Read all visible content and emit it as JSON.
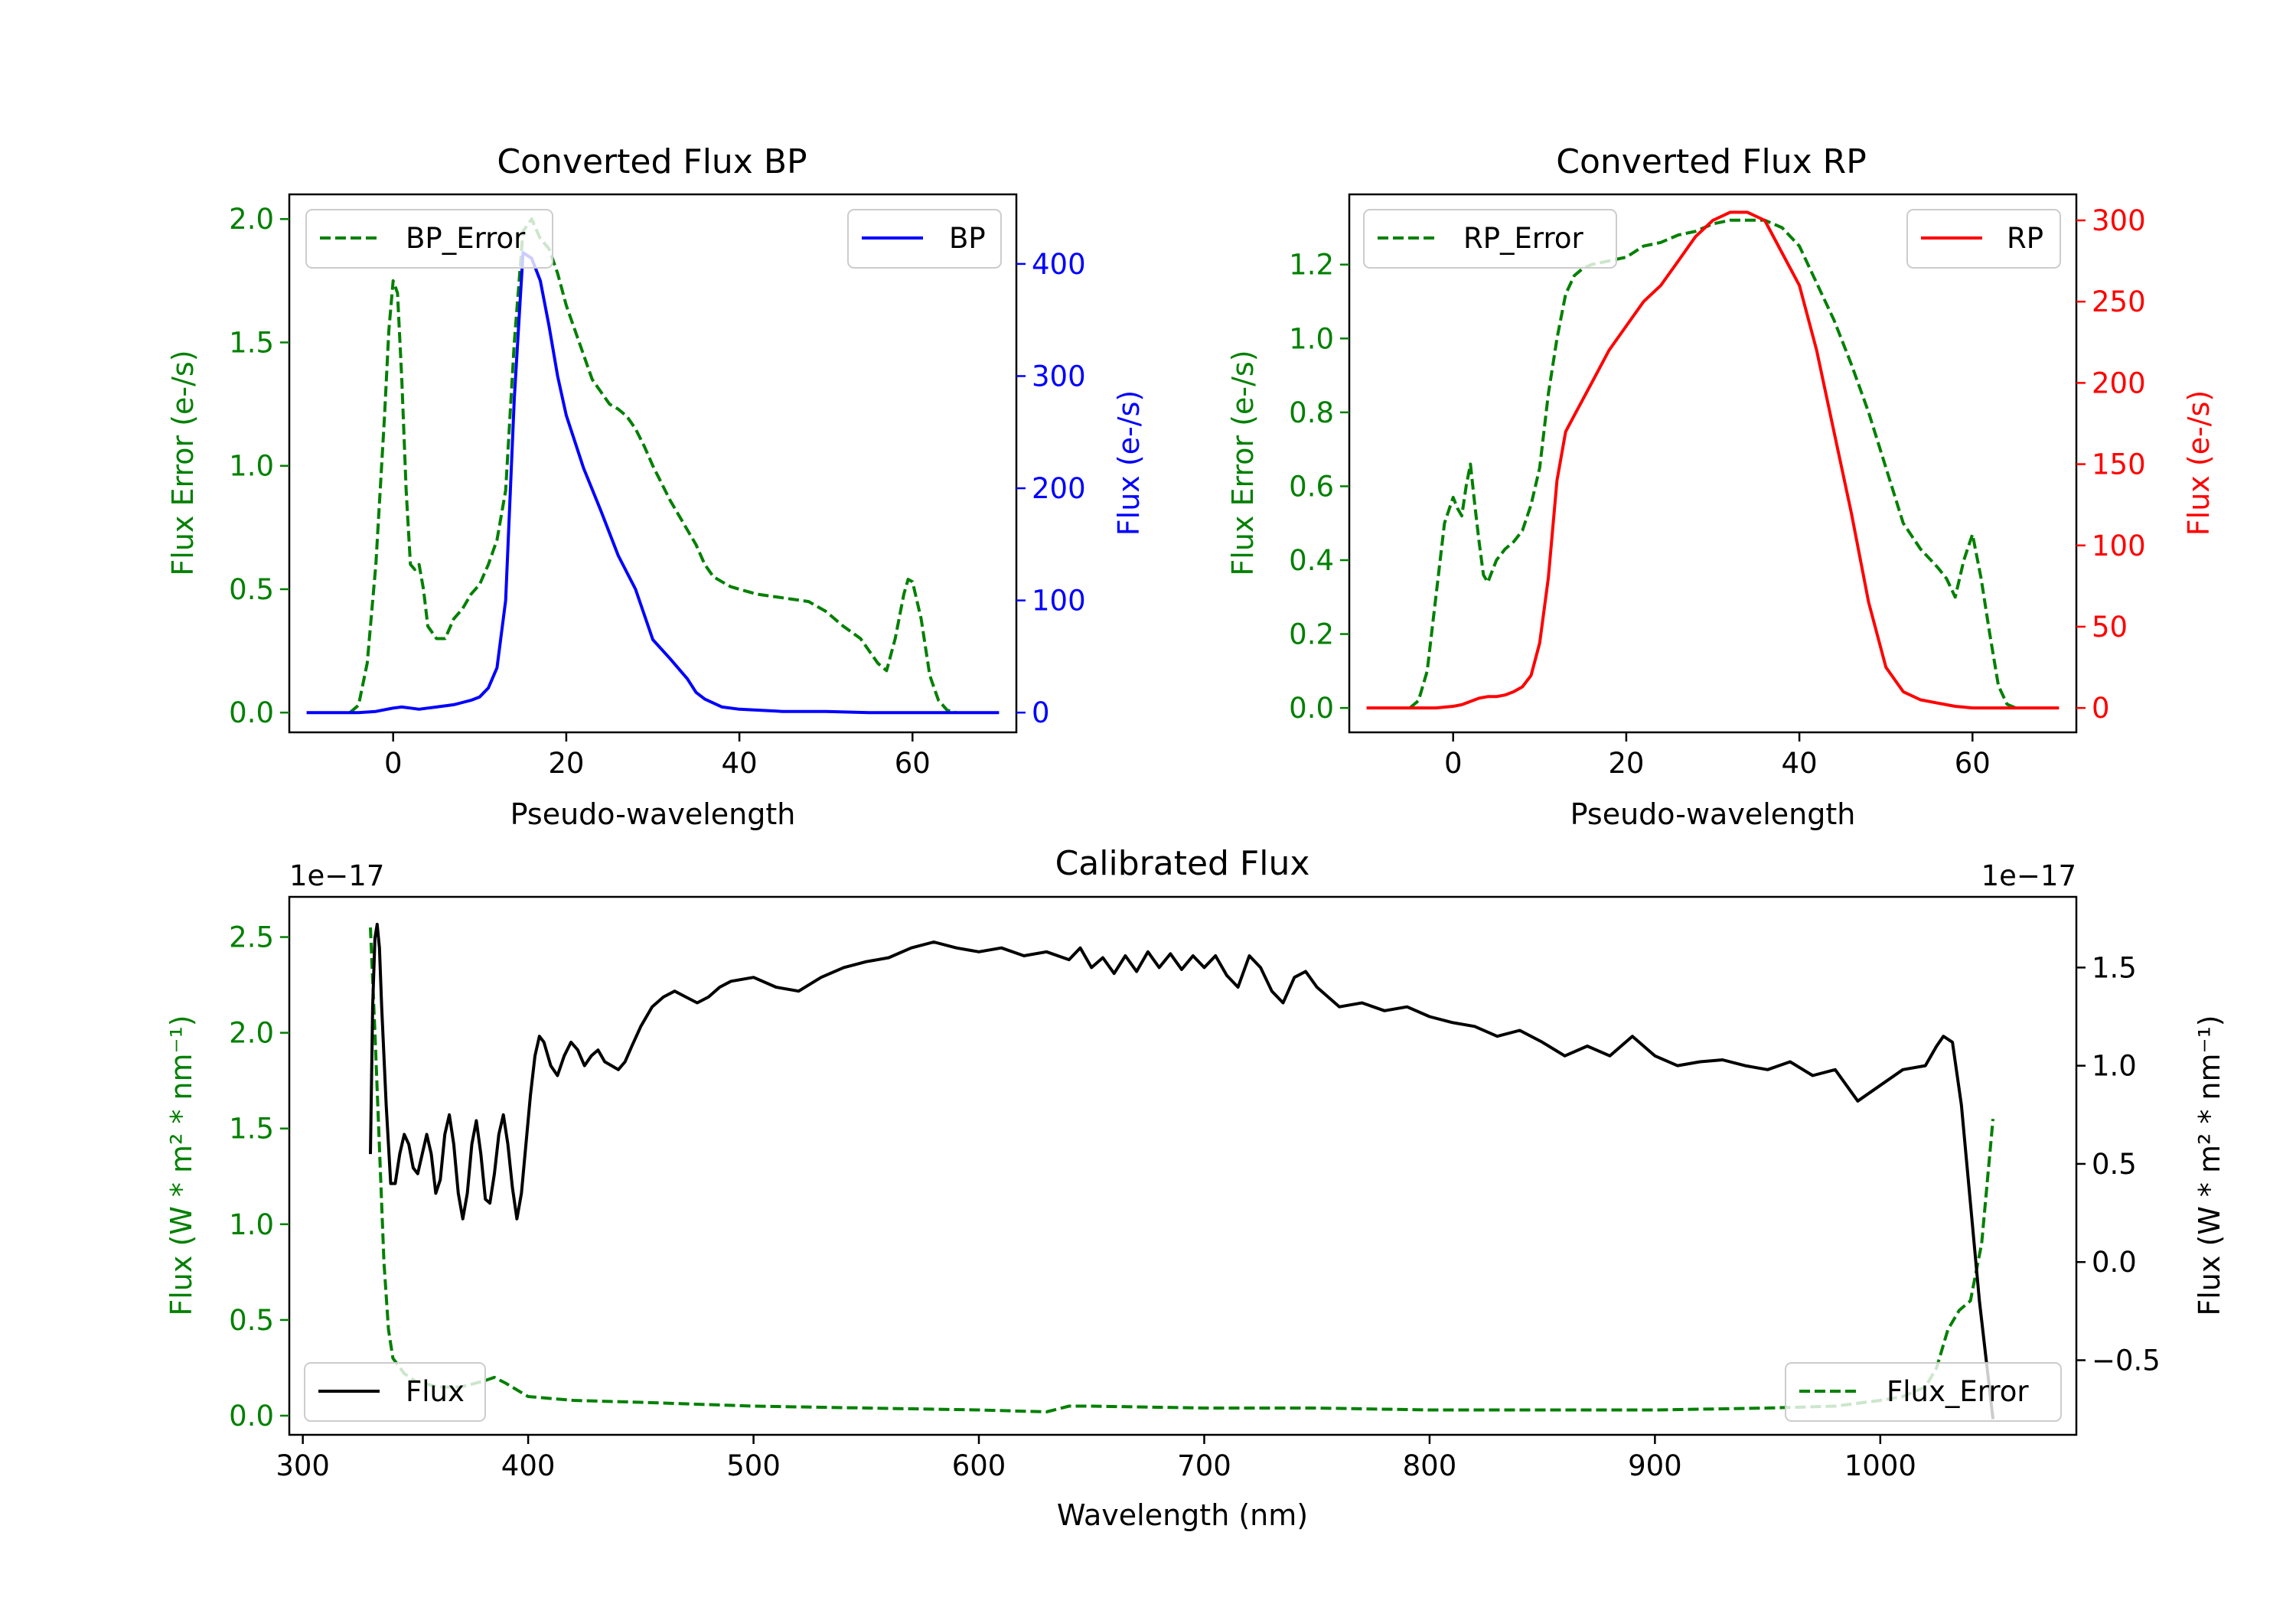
{
  "chart_data": [
    {
      "id": "bp",
      "type": "line",
      "title": "Converted Flux BP",
      "xlabel": "Pseudo-wavelength",
      "ylabel_left": "Flux Error (e-/s)",
      "ylabel_right": "Flux (e-/s)",
      "xlim": [
        -12,
        72
      ],
      "ylim_left": [
        -0.08,
        2.1
      ],
      "ylim_right": [
        -17.6,
        462
      ],
      "xticks": [
        0,
        20,
        40,
        60
      ],
      "yticks_left": [
        0.0,
        0.5,
        1.0,
        1.5,
        2.0
      ],
      "yticks_right": [
        0,
        100,
        200,
        300,
        400
      ],
      "ytick_labels_left": [
        "0.0",
        "0.5",
        "1.0",
        "1.5",
        "2.0"
      ],
      "ytick_labels_right": [
        "0",
        "100",
        "200",
        "300",
        "400"
      ],
      "legend_left": "top-left",
      "legend_right": "top-right",
      "series": [
        {
          "name": "BP_Error",
          "axis": "left",
          "color": "#008000",
          "dashed": true,
          "x": [
            -5,
            -4,
            -3,
            -2,
            -1,
            -0.5,
            0,
            0.5,
            1,
            1.5,
            2,
            2.5,
            3,
            3.5,
            4,
            5,
            6,
            7,
            8,
            9,
            10,
            11,
            12,
            13,
            14,
            15,
            16,
            17,
            18,
            19,
            20,
            21,
            22,
            23,
            24,
            25,
            26,
            27,
            28,
            29,
            30,
            31,
            32,
            33,
            34,
            35,
            36,
            37,
            38,
            39,
            40,
            42,
            44,
            46,
            48,
            50,
            52,
            54,
            56,
            57,
            58,
            59,
            59.5,
            60,
            61,
            62,
            63,
            64,
            65
          ],
          "values": [
            0.0,
            0.03,
            0.2,
            0.6,
            1.2,
            1.55,
            1.75,
            1.7,
            1.35,
            0.9,
            0.6,
            0.58,
            0.6,
            0.5,
            0.35,
            0.3,
            0.3,
            0.38,
            0.42,
            0.48,
            0.52,
            0.6,
            0.7,
            0.9,
            1.5,
            1.95,
            2.0,
            1.92,
            1.88,
            1.78,
            1.65,
            1.55,
            1.45,
            1.35,
            1.3,
            1.25,
            1.23,
            1.2,
            1.15,
            1.08,
            1.0,
            0.93,
            0.86,
            0.8,
            0.74,
            0.68,
            0.6,
            0.55,
            0.53,
            0.51,
            0.5,
            0.48,
            0.47,
            0.46,
            0.45,
            0.41,
            0.35,
            0.3,
            0.2,
            0.17,
            0.3,
            0.48,
            0.54,
            0.53,
            0.38,
            0.15,
            0.05,
            0.01,
            0.0
          ]
        },
        {
          "name": "BP",
          "axis": "right",
          "color": "#0000ff",
          "dashed": false,
          "x": [
            -10,
            -6,
            -4,
            -2,
            0,
            1,
            2,
            3,
            4,
            5,
            6,
            7,
            8,
            9,
            10,
            11,
            12,
            13,
            14,
            15,
            16,
            17,
            18,
            19,
            20,
            22,
            24,
            26,
            28,
            30,
            32,
            34,
            35,
            36,
            38,
            40,
            45,
            50,
            55,
            60,
            65,
            70
          ],
          "values": [
            0,
            0,
            0,
            1,
            4,
            5,
            4,
            3,
            4,
            5,
            6,
            7,
            9,
            11,
            14,
            22,
            40,
            100,
            280,
            410,
            405,
            385,
            345,
            300,
            265,
            218,
            180,
            140,
            110,
            65,
            48,
            30,
            18,
            12,
            5,
            3,
            1,
            1,
            0,
            0,
            0,
            0
          ]
        }
      ]
    },
    {
      "id": "rp",
      "type": "line",
      "title": "Converted Flux RP",
      "xlabel": "Pseudo-wavelength",
      "ylabel_left": "Flux Error (e-/s)",
      "ylabel_right": "Flux (e-/s)",
      "xlim": [
        -12,
        72
      ],
      "ylim_left": [
        -0.066,
        1.39
      ],
      "ylim_right": [
        -15.0,
        316
      ],
      "xticks": [
        0,
        20,
        40,
        60
      ],
      "yticks_left": [
        0.0,
        0.2,
        0.4,
        0.6,
        0.8,
        1.0,
        1.2
      ],
      "yticks_right": [
        0,
        50,
        100,
        150,
        200,
        250,
        300
      ],
      "ytick_labels_left": [
        "0.0",
        "0.2",
        "0.4",
        "0.6",
        "0.8",
        "1.0",
        "1.2"
      ],
      "ytick_labels_right": [
        "0",
        "50",
        "100",
        "150",
        "200",
        "250",
        "300"
      ],
      "legend_left": "top-left",
      "legend_right": "top-right",
      "series": [
        {
          "name": "RP_Error",
          "axis": "left",
          "color": "#008000",
          "dashed": true,
          "x": [
            -5,
            -4,
            -3,
            -2,
            -1,
            0,
            0.5,
            1,
            1.5,
            2,
            2.5,
            3,
            3.5,
            4,
            5,
            6,
            7,
            8,
            9,
            10,
            11,
            12,
            13,
            14,
            15,
            16,
            18,
            20,
            22,
            24,
            26,
            28,
            30,
            32,
            34,
            36,
            38,
            40,
            42,
            44,
            46,
            48,
            50,
            52,
            54,
            56,
            57,
            58,
            59,
            60,
            61,
            62,
            63,
            64,
            65
          ],
          "values": [
            0.0,
            0.02,
            0.1,
            0.3,
            0.5,
            0.57,
            0.54,
            0.52,
            0.6,
            0.66,
            0.55,
            0.45,
            0.36,
            0.34,
            0.4,
            0.43,
            0.45,
            0.48,
            0.55,
            0.65,
            0.85,
            1.0,
            1.12,
            1.17,
            1.19,
            1.2,
            1.21,
            1.22,
            1.25,
            1.26,
            1.28,
            1.29,
            1.31,
            1.32,
            1.32,
            1.32,
            1.3,
            1.25,
            1.15,
            1.05,
            0.93,
            0.8,
            0.65,
            0.5,
            0.43,
            0.38,
            0.35,
            0.3,
            0.4,
            0.47,
            0.35,
            0.2,
            0.06,
            0.01,
            0.0
          ]
        },
        {
          "name": "RP",
          "axis": "right",
          "color": "#ff0000",
          "dashed": false,
          "x": [
            -10,
            -4,
            -2,
            0,
            1,
            2,
            3,
            4,
            5,
            6,
            7,
            8,
            9,
            10,
            11,
            12,
            13,
            14,
            15,
            16,
            18,
            20,
            22,
            24,
            26,
            28,
            30,
            32,
            34,
            36,
            38,
            40,
            42,
            44,
            46,
            48,
            50,
            52,
            54,
            56,
            58,
            60,
            65,
            70
          ],
          "values": [
            0,
            0,
            0,
            1,
            2,
            4,
            6,
            7,
            7,
            8,
            10,
            13,
            20,
            40,
            80,
            140,
            170,
            180,
            190,
            200,
            220,
            235,
            250,
            260,
            275,
            290,
            300,
            305,
            305,
            300,
            280,
            260,
            220,
            170,
            120,
            65,
            25,
            10,
            5,
            3,
            1,
            0,
            0,
            0
          ]
        }
      ]
    },
    {
      "id": "cal",
      "type": "line",
      "title": "Calibrated Flux",
      "xlabel": "Wavelength (nm)",
      "ylabel_left": "Flux (W * m² * nm⁻¹)",
      "ylabel_right": "Flux (W * m² * nm⁻¹)",
      "offset_left": "1e−17",
      "offset_right": "1e−17",
      "xlim": [
        294,
        1087
      ],
      "ylim_left": [
        -0.1,
        2.71
      ],
      "ylim_right": [
        -0.88,
        1.86
      ],
      "xticks": [
        300,
        400,
        500,
        600,
        700,
        800,
        900,
        1000
      ],
      "yticks_left": [
        0.0,
        0.5,
        1.0,
        1.5,
        2.0,
        2.5
      ],
      "yticks_right": [
        -0.5,
        0.0,
        0.5,
        1.0,
        1.5
      ],
      "ytick_labels_left": [
        "0.0",
        "0.5",
        "1.0",
        "1.5",
        "2.0",
        "2.5"
      ],
      "ytick_labels_right": [
        "−0.5",
        "0.0",
        "0.5",
        "1.0",
        "1.5"
      ],
      "legend_left": "bottom-left",
      "legend_right": "bottom-right",
      "series": [
        {
          "name": "Flux_Error",
          "axis": "left",
          "color": "#008000",
          "dashed": true,
          "x": [
            330,
            332,
            334,
            336,
            338,
            340,
            345,
            350,
            360,
            370,
            380,
            385,
            390,
            400,
            420,
            450,
            500,
            550,
            600,
            630,
            640,
            650,
            700,
            750,
            800,
            850,
            900,
            950,
            980,
            1000,
            1010,
            1020,
            1025,
            1030,
            1035,
            1040,
            1045,
            1050
          ],
          "values": [
            2.55,
            2.0,
            1.4,
            0.8,
            0.45,
            0.3,
            0.22,
            0.18,
            0.15,
            0.15,
            0.18,
            0.2,
            0.17,
            0.1,
            0.08,
            0.07,
            0.05,
            0.04,
            0.03,
            0.02,
            0.05,
            0.05,
            0.04,
            0.04,
            0.03,
            0.03,
            0.03,
            0.04,
            0.05,
            0.08,
            0.1,
            0.15,
            0.25,
            0.45,
            0.55,
            0.6,
            0.9,
            1.55
          ]
        },
        {
          "name": "Flux",
          "axis": "right",
          "color": "#000000",
          "dashed": false,
          "x": [
            330,
            331,
            332,
            333,
            334,
            335,
            337,
            339,
            341,
            343,
            345,
            347,
            349,
            351,
            353,
            355,
            357,
            359,
            361,
            363,
            365,
            367,
            369,
            371,
            373,
            375,
            377,
            379,
            381,
            383,
            385,
            387,
            389,
            391,
            393,
            395,
            397,
            399,
            401,
            403,
            405,
            407,
            410,
            413,
            416,
            419,
            422,
            425,
            428,
            431,
            434,
            437,
            440,
            443,
            446,
            450,
            455,
            460,
            465,
            470,
            475,
            480,
            485,
            490,
            500,
            510,
            520,
            530,
            540,
            550,
            560,
            570,
            580,
            590,
            600,
            610,
            620,
            630,
            640,
            645,
            650,
            655,
            660,
            665,
            670,
            675,
            680,
            685,
            690,
            695,
            700,
            705,
            710,
            715,
            720,
            725,
            730,
            735,
            740,
            745,
            750,
            760,
            770,
            780,
            790,
            800,
            810,
            820,
            830,
            840,
            850,
            860,
            870,
            880,
            890,
            900,
            910,
            920,
            930,
            940,
            950,
            960,
            970,
            980,
            990,
            1000,
            1010,
            1020,
            1025,
            1028,
            1032,
            1036,
            1040,
            1044,
            1048,
            1050
          ],
          "values": [
            0.55,
            1.3,
            1.65,
            1.72,
            1.6,
            1.3,
            0.8,
            0.4,
            0.4,
            0.55,
            0.65,
            0.6,
            0.48,
            0.45,
            0.55,
            0.65,
            0.55,
            0.35,
            0.42,
            0.65,
            0.75,
            0.6,
            0.35,
            0.22,
            0.35,
            0.6,
            0.72,
            0.55,
            0.32,
            0.3,
            0.45,
            0.65,
            0.75,
            0.6,
            0.38,
            0.22,
            0.35,
            0.6,
            0.85,
            1.05,
            1.15,
            1.12,
            1.0,
            0.95,
            1.05,
            1.12,
            1.08,
            1.0,
            1.05,
            1.08,
            1.02,
            1.0,
            0.98,
            1.02,
            1.1,
            1.2,
            1.3,
            1.35,
            1.38,
            1.35,
            1.32,
            1.35,
            1.4,
            1.43,
            1.45,
            1.4,
            1.38,
            1.45,
            1.5,
            1.53,
            1.55,
            1.6,
            1.63,
            1.6,
            1.58,
            1.6,
            1.56,
            1.58,
            1.54,
            1.6,
            1.5,
            1.55,
            1.47,
            1.56,
            1.48,
            1.58,
            1.5,
            1.57,
            1.49,
            1.56,
            1.5,
            1.56,
            1.46,
            1.4,
            1.56,
            1.5,
            1.38,
            1.32,
            1.45,
            1.48,
            1.4,
            1.3,
            1.32,
            1.28,
            1.3,
            1.25,
            1.22,
            1.2,
            1.15,
            1.18,
            1.12,
            1.05,
            1.1,
            1.05,
            1.15,
            1.05,
            1.0,
            1.02,
            1.03,
            1.0,
            0.98,
            1.02,
            0.95,
            0.98,
            0.82,
            0.9,
            0.98,
            1.0,
            1.1,
            1.15,
            1.12,
            0.8,
            0.3,
            -0.2,
            -0.6,
            -0.8
          ]
        }
      ]
    }
  ]
}
